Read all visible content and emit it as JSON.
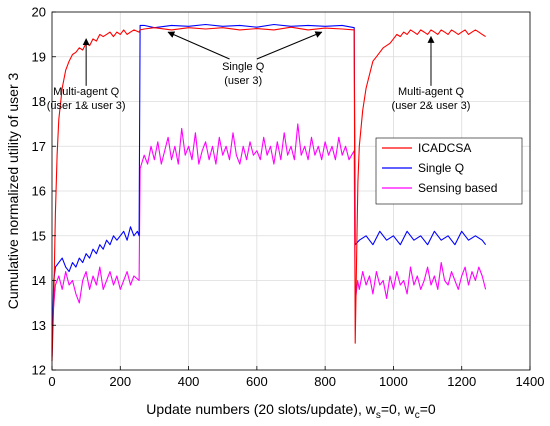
{
  "chart_data": {
    "type": "line",
    "title": "",
    "xlabel_main": "Update numbers (20 slots/update), w",
    "xlabel_sub_s": "s",
    "xlabel_mid": "=0, w",
    "xlabel_sub_c": "c",
    "xlabel_end": "=0",
    "ylabel": "Cumulative normalized utility of user 3",
    "xlim": [
      0,
      1400
    ],
    "ylim": [
      12,
      20
    ],
    "x_ticks": [
      0,
      200,
      400,
      600,
      800,
      1000,
      1200,
      1400
    ],
    "y_ticks": [
      12,
      13,
      14,
      15,
      16,
      17,
      18,
      19,
      20
    ],
    "grid": true,
    "legend_position": "right",
    "series": [
      {
        "name": "ICADCSA",
        "color": "#ff0000",
        "points": [
          [
            0,
            12.2
          ],
          [
            5,
            13.5
          ],
          [
            10,
            15.5
          ],
          [
            15,
            16.8
          ],
          [
            20,
            17.6
          ],
          [
            30,
            18.3
          ],
          [
            40,
            18.7
          ],
          [
            50,
            18.9
          ],
          [
            60,
            19.05
          ],
          [
            70,
            19.1
          ],
          [
            80,
            19.2
          ],
          [
            90,
            19.15
          ],
          [
            100,
            19.3
          ],
          [
            110,
            19.25
          ],
          [
            120,
            19.4
          ],
          [
            130,
            19.35
          ],
          [
            140,
            19.5
          ],
          [
            150,
            19.45
          ],
          [
            160,
            19.5
          ],
          [
            170,
            19.55
          ],
          [
            180,
            19.45
          ],
          [
            190,
            19.55
          ],
          [
            200,
            19.5
          ],
          [
            210,
            19.6
          ],
          [
            220,
            19.5
          ],
          [
            230,
            19.55
          ],
          [
            240,
            19.6
          ],
          [
            255,
            19.55
          ],
          [
            258,
            19.6
          ],
          [
            270,
            19.62
          ],
          [
            300,
            19.65
          ],
          [
            350,
            19.6
          ],
          [
            400,
            19.65
          ],
          [
            450,
            19.62
          ],
          [
            500,
            19.65
          ],
          [
            550,
            19.6
          ],
          [
            600,
            19.63
          ],
          [
            650,
            19.6
          ],
          [
            700,
            19.66
          ],
          [
            750,
            19.6
          ],
          [
            800,
            19.64
          ],
          [
            850,
            19.62
          ],
          [
            885,
            19.6
          ],
          [
            888,
            12.6
          ],
          [
            892,
            14.5
          ],
          [
            896,
            16.2
          ],
          [
            900,
            17.0
          ],
          [
            910,
            17.8
          ],
          [
            920,
            18.3
          ],
          [
            930,
            18.6
          ],
          [
            940,
            18.9
          ],
          [
            950,
            19.0
          ],
          [
            960,
            19.1
          ],
          [
            970,
            19.2
          ],
          [
            980,
            19.25
          ],
          [
            990,
            19.3
          ],
          [
            1000,
            19.4
          ],
          [
            1010,
            19.5
          ],
          [
            1020,
            19.45
          ],
          [
            1030,
            19.55
          ],
          [
            1040,
            19.5
          ],
          [
            1050,
            19.6
          ],
          [
            1060,
            19.55
          ],
          [
            1070,
            19.5
          ],
          [
            1080,
            19.6
          ],
          [
            1090,
            19.55
          ],
          [
            1100,
            19.5
          ],
          [
            1110,
            19.6
          ],
          [
            1120,
            19.55
          ],
          [
            1130,
            19.5
          ],
          [
            1140,
            19.6
          ],
          [
            1150,
            19.55
          ],
          [
            1160,
            19.5
          ],
          [
            1170,
            19.6
          ],
          [
            1180,
            19.55
          ],
          [
            1190,
            19.5
          ],
          [
            1200,
            19.55
          ],
          [
            1210,
            19.6
          ],
          [
            1220,
            19.5
          ],
          [
            1230,
            19.55
          ],
          [
            1240,
            19.6
          ],
          [
            1250,
            19.55
          ],
          [
            1260,
            19.5
          ],
          [
            1270,
            19.45
          ]
        ]
      },
      {
        "name": "Single Q",
        "color": "#0000ff",
        "points": [
          [
            0,
            12.3
          ],
          [
            5,
            14.0
          ],
          [
            10,
            14.3
          ],
          [
            20,
            14.4
          ],
          [
            30,
            14.5
          ],
          [
            40,
            14.3
          ],
          [
            50,
            14.2
          ],
          [
            60,
            14.4
          ],
          [
            70,
            14.3
          ],
          [
            80,
            14.5
          ],
          [
            90,
            14.4
          ],
          [
            100,
            14.6
          ],
          [
            110,
            14.5
          ],
          [
            120,
            14.7
          ],
          [
            130,
            14.6
          ],
          [
            140,
            14.8
          ],
          [
            150,
            14.7
          ],
          [
            160,
            14.9
          ],
          [
            170,
            14.8
          ],
          [
            180,
            15.0
          ],
          [
            190,
            14.9
          ],
          [
            200,
            15.0
          ],
          [
            210,
            15.1
          ],
          [
            220,
            14.9
          ],
          [
            230,
            15.2
          ],
          [
            240,
            15.0
          ],
          [
            250,
            15.1
          ],
          [
            255,
            15.0
          ],
          [
            258,
            19.7
          ],
          [
            270,
            19.7
          ],
          [
            300,
            19.65
          ],
          [
            350,
            19.7
          ],
          [
            400,
            19.68
          ],
          [
            450,
            19.72
          ],
          [
            500,
            19.68
          ],
          [
            550,
            19.7
          ],
          [
            600,
            19.66
          ],
          [
            650,
            19.72
          ],
          [
            700,
            19.68
          ],
          [
            750,
            19.7
          ],
          [
            800,
            19.68
          ],
          [
            850,
            19.7
          ],
          [
            885,
            19.65
          ],
          [
            888,
            14.8
          ],
          [
            900,
            14.9
          ],
          [
            920,
            15.0
          ],
          [
            940,
            14.8
          ],
          [
            960,
            15.1
          ],
          [
            980,
            14.9
          ],
          [
            1000,
            15.0
          ],
          [
            1020,
            14.8
          ],
          [
            1040,
            15.1
          ],
          [
            1060,
            14.9
          ],
          [
            1080,
            15.0
          ],
          [
            1100,
            14.8
          ],
          [
            1120,
            15.1
          ],
          [
            1140,
            14.9
          ],
          [
            1160,
            15.0
          ],
          [
            1180,
            14.8
          ],
          [
            1200,
            15.1
          ],
          [
            1220,
            14.9
          ],
          [
            1240,
            15.0
          ],
          [
            1260,
            14.9
          ],
          [
            1270,
            14.8
          ]
        ]
      },
      {
        "name": "Sensing based",
        "color": "#ff00ff",
        "points": [
          [
            0,
            13.0
          ],
          [
            10,
            13.9
          ],
          [
            20,
            14.1
          ],
          [
            30,
            13.8
          ],
          [
            40,
            14.2
          ],
          [
            50,
            13.9
          ],
          [
            60,
            14.0
          ],
          [
            70,
            13.7
          ],
          [
            80,
            13.5
          ],
          [
            90,
            14.0
          ],
          [
            100,
            14.2
          ],
          [
            110,
            13.8
          ],
          [
            120,
            14.1
          ],
          [
            130,
            13.9
          ],
          [
            140,
            14.3
          ],
          [
            150,
            13.8
          ],
          [
            160,
            14.0
          ],
          [
            170,
            14.2
          ],
          [
            180,
            13.9
          ],
          [
            190,
            14.1
          ],
          [
            200,
            13.8
          ],
          [
            210,
            14.0
          ],
          [
            220,
            14.2
          ],
          [
            230,
            13.9
          ],
          [
            240,
            14.1
          ],
          [
            255,
            14.0
          ],
          [
            258,
            16.5
          ],
          [
            270,
            16.8
          ],
          [
            280,
            16.6
          ],
          [
            290,
            17.0
          ],
          [
            300,
            16.7
          ],
          [
            310,
            17.1
          ],
          [
            320,
            16.6
          ],
          [
            330,
            16.9
          ],
          [
            340,
            17.2
          ],
          [
            350,
            16.7
          ],
          [
            360,
            17.0
          ],
          [
            370,
            16.6
          ],
          [
            380,
            17.4
          ],
          [
            390,
            16.8
          ],
          [
            400,
            17.0
          ],
          [
            410,
            16.7
          ],
          [
            420,
            17.3
          ],
          [
            430,
            16.6
          ],
          [
            440,
            16.9
          ],
          [
            450,
            17.1
          ],
          [
            460,
            16.7
          ],
          [
            470,
            17.0
          ],
          [
            480,
            16.6
          ],
          [
            490,
            17.2
          ],
          [
            500,
            16.8
          ],
          [
            510,
            17.0
          ],
          [
            520,
            16.7
          ],
          [
            530,
            17.3
          ],
          [
            540,
            16.8
          ],
          [
            550,
            16.6
          ],
          [
            560,
            17.0
          ],
          [
            570,
            16.7
          ],
          [
            580,
            17.1
          ],
          [
            590,
            16.8
          ],
          [
            600,
            16.9
          ],
          [
            610,
            16.7
          ],
          [
            620,
            17.2
          ],
          [
            630,
            16.8
          ],
          [
            640,
            17.0
          ],
          [
            650,
            16.6
          ],
          [
            660,
            17.1
          ],
          [
            670,
            16.7
          ],
          [
            680,
            17.3
          ],
          [
            690,
            16.8
          ],
          [
            700,
            17.0
          ],
          [
            710,
            16.7
          ],
          [
            720,
            17.5
          ],
          [
            730,
            16.8
          ],
          [
            740,
            17.0
          ],
          [
            750,
            16.7
          ],
          [
            760,
            17.2
          ],
          [
            770,
            16.8
          ],
          [
            780,
            17.0
          ],
          [
            790,
            16.7
          ],
          [
            800,
            17.1
          ],
          [
            810,
            16.8
          ],
          [
            820,
            17.0
          ],
          [
            830,
            16.7
          ],
          [
            840,
            17.2
          ],
          [
            850,
            16.8
          ],
          [
            860,
            17.0
          ],
          [
            870,
            16.7
          ],
          [
            885,
            16.9
          ],
          [
            888,
            13.5
          ],
          [
            895,
            14.0
          ],
          [
            900,
            13.8
          ],
          [
            910,
            14.2
          ],
          [
            920,
            13.9
          ],
          [
            930,
            14.1
          ],
          [
            940,
            13.7
          ],
          [
            950,
            14.2
          ],
          [
            960,
            13.9
          ],
          [
            970,
            14.0
          ],
          [
            980,
            13.6
          ],
          [
            990,
            14.1
          ],
          [
            1000,
            13.8
          ],
          [
            1010,
            14.2
          ],
          [
            1020,
            13.9
          ],
          [
            1030,
            14.0
          ],
          [
            1040,
            13.7
          ],
          [
            1050,
            14.3
          ],
          [
            1060,
            13.9
          ],
          [
            1070,
            14.1
          ],
          [
            1080,
            13.8
          ],
          [
            1090,
            14.0
          ],
          [
            1100,
            14.3
          ],
          [
            1110,
            13.9
          ],
          [
            1120,
            14.1
          ],
          [
            1130,
            13.8
          ],
          [
            1140,
            14.4
          ],
          [
            1150,
            14.0
          ],
          [
            1160,
            13.9
          ],
          [
            1170,
            14.2
          ],
          [
            1180,
            14.0
          ],
          [
            1190,
            13.8
          ],
          [
            1200,
            14.1
          ],
          [
            1210,
            14.3
          ],
          [
            1220,
            13.9
          ],
          [
            1230,
            14.2
          ],
          [
            1240,
            14.0
          ],
          [
            1250,
            14.3
          ],
          [
            1260,
            14.1
          ],
          [
            1270,
            13.8
          ]
        ]
      }
    ],
    "annotations": [
      {
        "lines": [
          "Multi-agent Q",
          "(user 1& user 3)"
        ],
        "text_x": 100,
        "text_y": 18.15,
        "arrows": [
          {
            "from_x": 100,
            "from_y": 18.35,
            "to_x": 100,
            "to_y": 19.4
          }
        ]
      },
      {
        "lines": [
          "Single Q",
          "(user 3)"
        ],
        "text_x": 560,
        "text_y": 18.7,
        "arrows": [
          {
            "from_x": 520,
            "from_y": 18.95,
            "to_x": 340,
            "to_y": 19.55
          },
          {
            "from_x": 600,
            "from_y": 18.95,
            "to_x": 790,
            "to_y": 19.55
          }
        ]
      },
      {
        "lines": [
          "Multi-agent Q",
          "(user 2& user 3)"
        ],
        "text_x": 1110,
        "text_y": 18.15,
        "arrows": [
          {
            "from_x": 1110,
            "from_y": 18.35,
            "to_x": 1110,
            "to_y": 19.45
          }
        ]
      }
    ]
  }
}
